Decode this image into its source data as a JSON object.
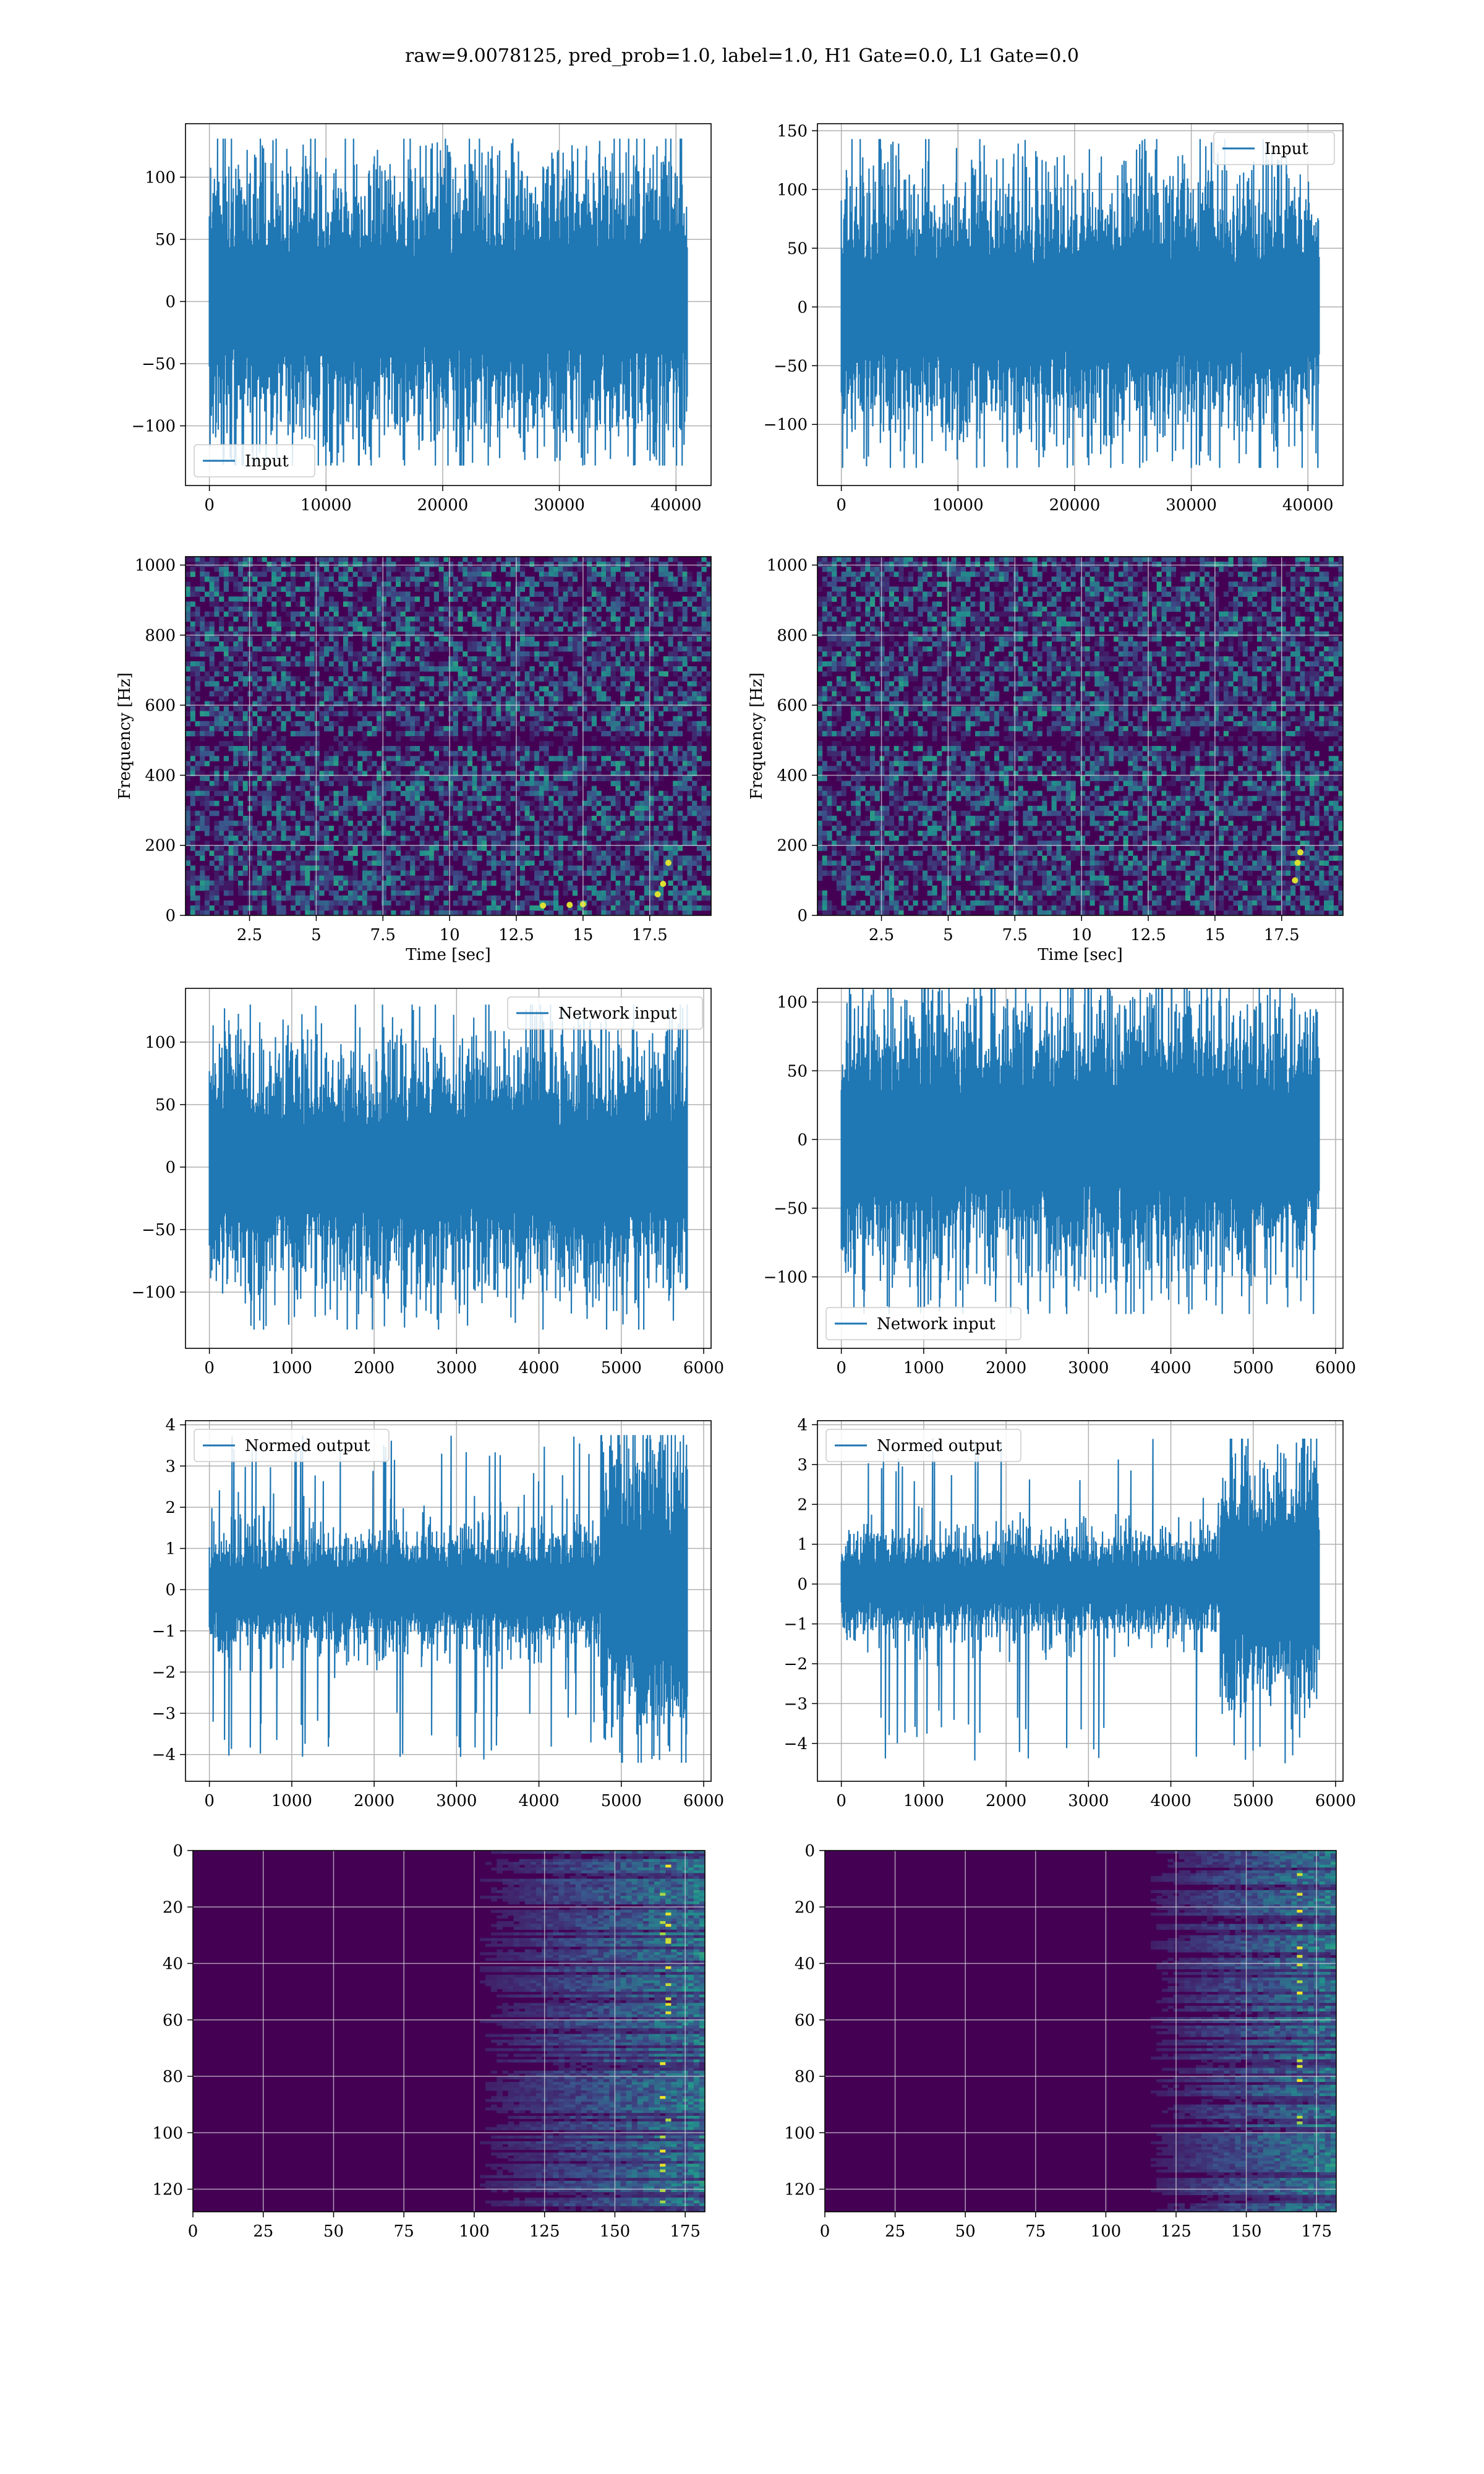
{
  "suptitle": "raw=9.0078125, pred_prob=1.0, label=1.0, H1 Gate=0.0, L1 Gate=0.0",
  "colors": {
    "line": "#1f77b4",
    "grid": "#b0b0b0",
    "viridis_low": "#440154",
    "viridis_mid": "#21918c",
    "viridis_high": "#fde725"
  },
  "chart_data": [
    {
      "id": "input-h1",
      "type": "line",
      "legend": "Input",
      "legend_loc": "lower-left",
      "series": [
        {
          "name": "Input",
          "n": 40960,
          "amplitude_std": 30,
          "peak_min": -132,
          "peak_max": 131
        }
      ],
      "xlim": [
        -2048,
        43008
      ],
      "ylim": [
        -148,
        143
      ],
      "xticks": [
        0,
        10000,
        20000,
        30000,
        40000
      ],
      "yticks": [
        -100,
        -50,
        0,
        50,
        100
      ],
      "xlabel": "",
      "ylabel": "",
      "grid": true
    },
    {
      "id": "input-l1",
      "type": "line",
      "legend": "Input",
      "legend_loc": "upper-right",
      "series": [
        {
          "name": "Input",
          "n": 40960,
          "amplitude_std": 30,
          "peak_min": -137,
          "peak_max": 143
        }
      ],
      "xlim": [
        -2048,
        43008
      ],
      "ylim": [
        -152,
        156
      ],
      "xticks": [
        0,
        10000,
        20000,
        30000,
        40000
      ],
      "yticks": [
        -100,
        -50,
        0,
        50,
        100,
        150
      ],
      "xlabel": "",
      "ylabel": "",
      "grid": true
    },
    {
      "id": "spec-h1",
      "type": "heatmap",
      "cmap": "viridis",
      "xlim": [
        0.1,
        19.8
      ],
      "ylim": [
        0,
        1024
      ],
      "xticks": [
        2.5,
        5.0,
        7.5,
        10.0,
        12.5,
        15.0,
        17.5
      ],
      "yticks": [
        0,
        200,
        400,
        600,
        800,
        1000
      ],
      "xlabel": "Time [sec]",
      "ylabel": "Frequency [Hz]",
      "grid": true,
      "features": {
        "dark_band_hz": 500,
        "bright_spots": [
          [
            13.5,
            28
          ],
          [
            14.5,
            30
          ],
          [
            15.0,
            32
          ],
          [
            17.8,
            60
          ],
          [
            18.0,
            90
          ],
          [
            18.2,
            150
          ]
        ]
      }
    },
    {
      "id": "spec-l1",
      "type": "heatmap",
      "cmap": "viridis",
      "xlim": [
        0.1,
        19.8
      ],
      "ylim": [
        0,
        1024
      ],
      "xticks": [
        2.5,
        5.0,
        7.5,
        10.0,
        12.5,
        15.0,
        17.5
      ],
      "yticks": [
        0,
        200,
        400,
        600,
        800,
        1000
      ],
      "xlabel": "Time [sec]",
      "ylabel": "Frequency [Hz]",
      "grid": true,
      "features": {
        "dark_band_hz": 500,
        "bright_spots": [
          [
            18.0,
            100
          ],
          [
            18.1,
            150
          ],
          [
            18.2,
            180
          ]
        ]
      }
    },
    {
      "id": "net-h1",
      "type": "line",
      "legend": "Network input",
      "legend_loc": "upper-right",
      "series": [
        {
          "name": "Network input",
          "n": 5800,
          "amplitude_std": 27,
          "peak_min": -130,
          "peak_max": 130
        }
      ],
      "xlim": [
        -290,
        6090
      ],
      "ylim": [
        -145,
        143
      ],
      "xticks": [
        0,
        1000,
        2000,
        3000,
        4000,
        5000,
        6000
      ],
      "yticks": [
        -100,
        -50,
        0,
        50,
        100
      ],
      "xlabel": "",
      "ylabel": "",
      "grid": true
    },
    {
      "id": "net-l1",
      "type": "line",
      "legend": "Network input",
      "legend_loc": "lower-left",
      "series": [
        {
          "name": "Network input",
          "n": 5800,
          "amplitude_std": 27,
          "peak_min": -127,
          "peak_max": 115
        }
      ],
      "xlim": [
        -290,
        6090
      ],
      "ylim": [
        -152,
        110
      ],
      "xticks": [
        0,
        1000,
        2000,
        3000,
        4000,
        5000,
        6000
      ],
      "yticks": [
        -100,
        -50,
        0,
        50,
        100
      ],
      "xlabel": "",
      "ylabel": "",
      "grid": true
    },
    {
      "id": "norm-h1",
      "type": "line",
      "legend": "Normed output",
      "legend_loc": "upper-left",
      "series": [
        {
          "name": "Normed output",
          "n": 5800,
          "amplitude_std": 0.4,
          "peak_min": -4.2,
          "peak_max": 3.75,
          "burst_start": 4750
        }
      ],
      "xlim": [
        -290,
        6090
      ],
      "ylim": [
        -4.65,
        4.1
      ],
      "xticks": [
        0,
        1000,
        2000,
        3000,
        4000,
        5000,
        6000
      ],
      "yticks": [
        -4,
        -3,
        -2,
        -1,
        0,
        1,
        2,
        3,
        4
      ],
      "xlabel": "",
      "ylabel": "",
      "grid": true
    },
    {
      "id": "norm-l1",
      "type": "line",
      "legend": "Normed output",
      "legend_loc": "upper-left",
      "series": [
        {
          "name": "Normed output",
          "n": 5800,
          "amplitude_std": 0.35,
          "peak_min": -4.5,
          "peak_max": 3.65,
          "burst_start": 4600
        }
      ],
      "xlim": [
        -290,
        6090
      ],
      "ylim": [
        -4.95,
        4.1
      ],
      "xticks": [
        0,
        1000,
        2000,
        3000,
        4000,
        5000,
        6000
      ],
      "yticks": [
        -4,
        -3,
        -2,
        -1,
        0,
        1,
        2,
        3,
        4
      ],
      "xlabel": "",
      "ylabel": "",
      "grid": true
    },
    {
      "id": "feat-h1",
      "type": "heatmap",
      "cmap": "viridis",
      "rows": 128,
      "cols": 182,
      "xlim": [
        0,
        182
      ],
      "ylim": [
        128,
        0
      ],
      "xticks": [
        0,
        25,
        50,
        75,
        100,
        125,
        150,
        175
      ],
      "yticks": [
        0,
        20,
        40,
        60,
        80,
        100,
        120
      ],
      "xlabel": "",
      "ylabel": "",
      "grid": true,
      "features": {
        "activity_start_col": 100,
        "bright_col": 167
      }
    },
    {
      "id": "feat-l1",
      "type": "heatmap",
      "cmap": "viridis",
      "rows": 128,
      "cols": 182,
      "xlim": [
        0,
        182
      ],
      "ylim": [
        128,
        0
      ],
      "xticks": [
        0,
        25,
        50,
        75,
        100,
        125,
        150,
        175
      ],
      "yticks": [
        0,
        20,
        40,
        60,
        80,
        100,
        120
      ],
      "xlabel": "",
      "ylabel": "",
      "grid": true,
      "features": {
        "activity_start_col": 115,
        "bright_col": 168
      }
    }
  ]
}
